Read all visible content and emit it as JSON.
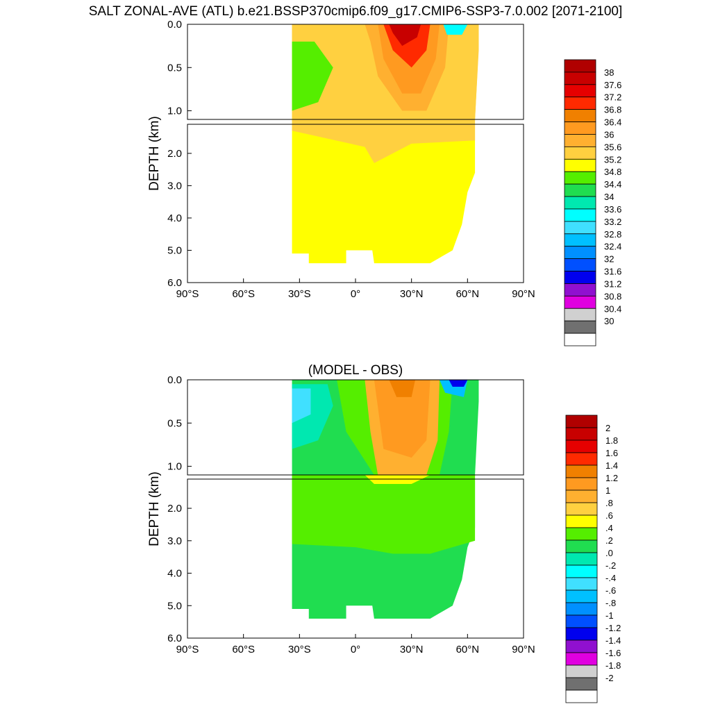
{
  "title": "SALT ZONAL-AVE (ATL) b.e21.BSSP370cmip6.f09_g17.CMIP6-SSP3-7.0.002 [2071-2100]",
  "chart_data": [
    {
      "type": "heatmap",
      "panel": "top",
      "title": "",
      "ylabel": "DEPTH (km)",
      "xlabel": "",
      "x_ticks": [
        "90°S",
        "60°S",
        "30°S",
        "0°",
        "30°N",
        "60°N",
        "90°N"
      ],
      "x_tick_values": [
        -90,
        -60,
        -30,
        0,
        30,
        60,
        90
      ],
      "y_ticks_upper": [
        "0.0",
        "0.5",
        "1.0"
      ],
      "y_ticks_lower": [
        "2.0",
        "3.0",
        "4.0",
        "5.0",
        "6.0"
      ],
      "xlim": [
        -90,
        90
      ],
      "ylim_upper_km": [
        0,
        1.1
      ],
      "ylim_lower_km": [
        1.1,
        6.0
      ],
      "legend_placement": "right",
      "colorbar": {
        "labels": [
          "38",
          "37.6",
          "37.2",
          "36.8",
          "36.4",
          "36",
          "35.6",
          "35.2",
          "34.8",
          "34.4",
          "34",
          "33.6",
          "33.2",
          "32.8",
          "32.4",
          "32",
          "31.6",
          "31.2",
          "30.8",
          "30.4",
          "30"
        ],
        "colors": [
          "#b00000",
          "#c80000",
          "#e60000",
          "#ff2a00",
          "#f08000",
          "#ff9a20",
          "#ffb030",
          "#ffd040",
          "#ffff00",
          "#55ee00",
          "#20dd50",
          "#00e8b0",
          "#00ffff",
          "#40e0ff",
          "#00c0ff",
          "#0090ff",
          "#0050ff",
          "#0000ee",
          "#9010d0",
          "#e000e0",
          "#d0d0d0",
          "#707070",
          "#ffffff"
        ]
      },
      "regions": [
        {
          "field": "salinity",
          "value_range": [
            34.8,
            35.2
          ],
          "description_area": "deep ocean below ~1.5 km, 34°S–65°N"
        },
        {
          "field": "salinity",
          "value_range": [
            35.2,
            35.6
          ],
          "description_area": "subtropical thermocline 30°S–65°N, 0–1.2 km"
        },
        {
          "field": "salinity",
          "value_range": [
            34.4,
            34.8
          ],
          "description_area": "southern intermediate water 34°S–20°S, 0.2–1.0 km"
        },
        {
          "field": "salinity",
          "value_range": [
            36.4,
            37.6
          ],
          "description_area": "N. Atlantic subtropical surface max ~25°N, 0–0.8 km"
        }
      ]
    },
    {
      "type": "heatmap",
      "panel": "bottom",
      "title": "(MODEL - OBS)",
      "ylabel": "DEPTH (km)",
      "xlabel": "",
      "x_ticks": [
        "90°S",
        "60°S",
        "30°S",
        "0°",
        "30°N",
        "60°N",
        "90°N"
      ],
      "x_tick_values": [
        -90,
        -60,
        -30,
        0,
        30,
        60,
        90
      ],
      "y_ticks_upper": [
        "0.0",
        "0.5",
        "1.0"
      ],
      "y_ticks_lower": [
        "2.0",
        "3.0",
        "4.0",
        "5.0",
        "6.0"
      ],
      "xlim": [
        -90,
        90
      ],
      "ylim_upper_km": [
        0,
        1.1
      ],
      "ylim_lower_km": [
        1.1,
        6.0
      ],
      "legend_placement": "right",
      "colorbar": {
        "labels": [
          "2",
          "1.8",
          "1.6",
          "1.4",
          "1.2",
          "1",
          ".8",
          ".6",
          ".4",
          ".2",
          ".0",
          "-.2",
          "-.4",
          "-.6",
          "-.8",
          "-1",
          "-1.2",
          "-1.4",
          "-1.6",
          "-1.8",
          "-2"
        ],
        "colors": [
          "#b00000",
          "#c80000",
          "#e60000",
          "#ff2a00",
          "#f08000",
          "#ff9a20",
          "#ffb030",
          "#ffd040",
          "#ffff00",
          "#55ee00",
          "#20dd50",
          "#00e8b0",
          "#00ffff",
          "#40e0ff",
          "#00c0ff",
          "#0090ff",
          "#0050ff",
          "#0000ee",
          "#9010d0",
          "#e000e0",
          "#d0d0d0",
          "#707070",
          "#ffffff"
        ]
      },
      "regions": [
        {
          "field": "salinity_diff",
          "value_range": [
            0.2,
            0.4
          ],
          "description_area": "deep ocean 34°S–65°N, 1.2–3 km"
        },
        {
          "field": "salinity_diff",
          "value_range": [
            0.0,
            0.2
          ],
          "description_area": "abyssal ocean 34°S–60°N, 3–5.4 km"
        },
        {
          "field": "salinity_diff",
          "value_range": [
            0.8,
            1.0
          ],
          "description_area": "N. Atlantic thermocline 10°N–45°N, 0–1.0 km"
        },
        {
          "field": "salinity_diff",
          "value_range": [
            -0.6,
            -0.2
          ],
          "description_area": "southern intermediate water ~34°S–25°S, 0.1–0.6 km"
        },
        {
          "field": "salinity_diff",
          "value_range": [
            -2.0,
            -1.0
          ],
          "description_area": "high-latitude N. Atlantic surface 55°N–65°N"
        }
      ]
    }
  ]
}
